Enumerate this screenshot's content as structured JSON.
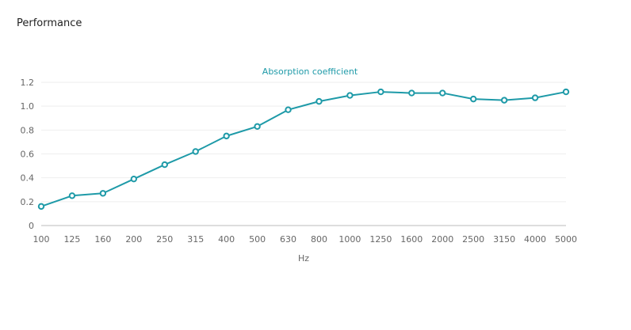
{
  "page": {
    "section_title": "Performance"
  },
  "chart_data": {
    "type": "line",
    "series": [
      {
        "name": "Absorption coefficient",
        "color": "#1e9aa8",
        "values": [
          0.16,
          0.25,
          0.27,
          0.39,
          0.51,
          0.62,
          0.75,
          0.83,
          0.97,
          1.04,
          1.09,
          1.12,
          1.11,
          1.11,
          1.06,
          1.05,
          1.07,
          1.12
        ]
      }
    ],
    "categories": [
      "100",
      "125",
      "160",
      "200",
      "250",
      "315",
      "400",
      "500",
      "630",
      "800",
      "1000",
      "1250",
      "1600",
      "2000",
      "2500",
      "3150",
      "4000",
      "5000"
    ],
    "xlabel": "Hz",
    "ylabel": "",
    "ylim": [
      0,
      1.2
    ],
    "yticks": [
      "0",
      "0.2",
      "0.4",
      "0.6",
      "0.8",
      "1.0",
      "1.2"
    ],
    "grid": true,
    "legend_position": "top-center"
  }
}
